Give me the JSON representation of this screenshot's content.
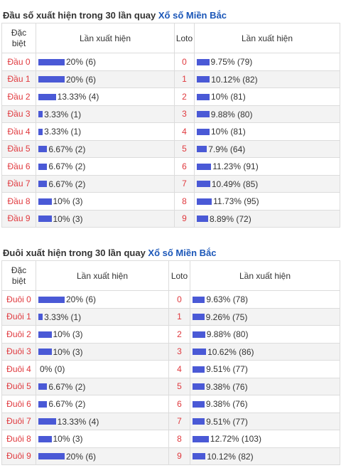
{
  "dau": {
    "title_prefix": "Đầu số xuất hiện trong 30 lần quay ",
    "title_link": "Xổ số Miền Bắc",
    "header": {
      "col1_line1": "Đặc",
      "col1_line2": "biệt",
      "col2": "Lần xuất hiện",
      "col3": "Loto",
      "col4": "Lần xuất hiện"
    },
    "rows": [
      {
        "label": "Đầu 0",
        "left_text": "20% (6)",
        "left_pct": 20,
        "loto": "0",
        "right_text": "9.75% (79)",
        "right_pct": 9.75
      },
      {
        "label": "Đầu 1",
        "left_text": "20% (6)",
        "left_pct": 20,
        "loto": "1",
        "right_text": "10.12% (82)",
        "right_pct": 10.12
      },
      {
        "label": "Đầu 2",
        "left_text": "13.33% (4)",
        "left_pct": 13.33,
        "loto": "2",
        "right_text": "10% (81)",
        "right_pct": 10
      },
      {
        "label": "Đầu 3",
        "left_text": "3.33% (1)",
        "left_pct": 3.33,
        "loto": "3",
        "right_text": "9.88% (80)",
        "right_pct": 9.88
      },
      {
        "label": "Đầu 4",
        "left_text": "3.33% (1)",
        "left_pct": 3.33,
        "loto": "4",
        "right_text": "10% (81)",
        "right_pct": 10
      },
      {
        "label": "Đầu 5",
        "left_text": "6.67% (2)",
        "left_pct": 6.67,
        "loto": "5",
        "right_text": "7.9% (64)",
        "right_pct": 7.9
      },
      {
        "label": "Đầu 6",
        "left_text": "6.67% (2)",
        "left_pct": 6.67,
        "loto": "6",
        "right_text": "11.23% (91)",
        "right_pct": 11.23
      },
      {
        "label": "Đầu 7",
        "left_text": "6.67% (2)",
        "left_pct": 6.67,
        "loto": "7",
        "right_text": "10.49% (85)",
        "right_pct": 10.49
      },
      {
        "label": "Đầu 8",
        "left_text": "10% (3)",
        "left_pct": 10,
        "loto": "8",
        "right_text": "11.73% (95)",
        "right_pct": 11.73
      },
      {
        "label": "Đầu 9",
        "left_text": "10% (3)",
        "left_pct": 10,
        "loto": "9",
        "right_text": "8.89% (72)",
        "right_pct": 8.89
      }
    ]
  },
  "duoi": {
    "title_prefix": "Đuôi xuất hiện trong 30 lần quay ",
    "title_link": "Xổ số Miền Bắc",
    "header": {
      "col1_line1": "Đặc",
      "col1_line2": "biệt",
      "col2": "Lần xuất hiện",
      "col3": "Loto",
      "col4": "Lần xuất hiện"
    },
    "rows": [
      {
        "label": "Đuôi 0",
        "left_text": "20% (6)",
        "left_pct": 20,
        "loto": "0",
        "right_text": "9.63% (78)",
        "right_pct": 9.63
      },
      {
        "label": "Đuôi 1",
        "left_text": "3.33% (1)",
        "left_pct": 3.33,
        "loto": "1",
        "right_text": "9.26% (75)",
        "right_pct": 9.26
      },
      {
        "label": "Đuôi 2",
        "left_text": "10% (3)",
        "left_pct": 10,
        "loto": "2",
        "right_text": "9.88% (80)",
        "right_pct": 9.88
      },
      {
        "label": "Đuôi 3",
        "left_text": "10% (3)",
        "left_pct": 10,
        "loto": "3",
        "right_text": "10.62% (86)",
        "right_pct": 10.62
      },
      {
        "label": "Đuôi 4",
        "left_text": "0% (0)",
        "left_pct": 0,
        "loto": "4",
        "right_text": "9.51% (77)",
        "right_pct": 9.51
      },
      {
        "label": "Đuôi 5",
        "left_text": "6.67% (2)",
        "left_pct": 6.67,
        "loto": "5",
        "right_text": "9.38% (76)",
        "right_pct": 9.38
      },
      {
        "label": "Đuôi 6",
        "left_text": "6.67% (2)",
        "left_pct": 6.67,
        "loto": "6",
        "right_text": "9.38% (76)",
        "right_pct": 9.38
      },
      {
        "label": "Đuôi 7",
        "left_text": "13.33% (4)",
        "left_pct": 13.33,
        "loto": "7",
        "right_text": "9.51% (77)",
        "right_pct": 9.51
      },
      {
        "label": "Đuôi 8",
        "left_text": "10% (3)",
        "left_pct": 10,
        "loto": "8",
        "right_text": "12.72% (103)",
        "right_pct": 12.72
      },
      {
        "label": "Đuôi 9",
        "left_text": "20% (6)",
        "left_pct": 20,
        "loto": "9",
        "right_text": "10.12% (82)",
        "right_pct": 10.12
      }
    ]
  },
  "colors": {
    "bar": "#4a59d6",
    "label": "#e0393e",
    "link": "#1a56b8"
  }
}
